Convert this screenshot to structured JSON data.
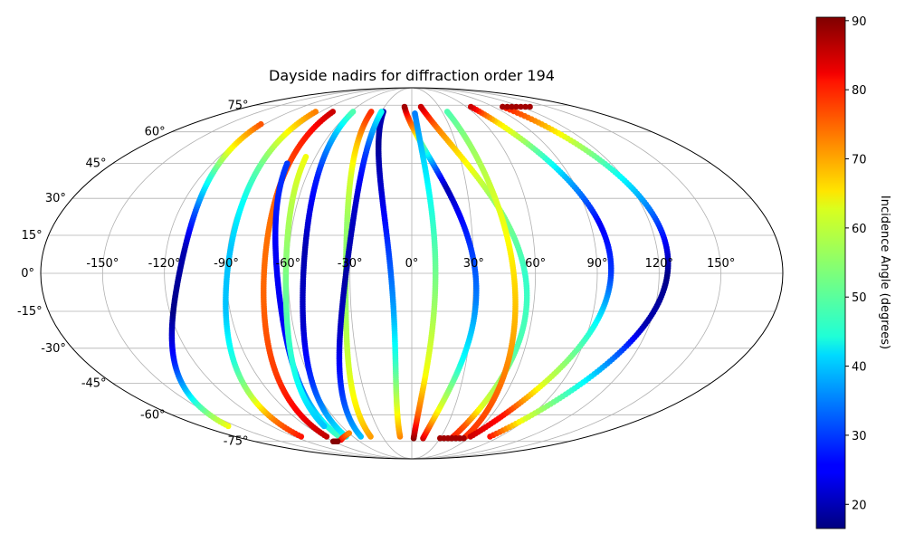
{
  "chart_data": {
    "type": "scatter",
    "projection": "mollweide",
    "title": "Dayside nadirs for diffraction order 194",
    "grid": true,
    "colormap": "jet",
    "lon_tick_labels": [
      "-150°",
      "-120°",
      "-90°",
      "-60°",
      "-30°",
      "0°",
      "30°",
      "60°",
      "90°",
      "120°",
      "150°"
    ],
    "lat_tick_labels": [
      "75°",
      "60°",
      "45°",
      "30°",
      "15°",
      "0°",
      "-15°",
      "-30°",
      "-45°",
      "-60°",
      "-75°"
    ],
    "colorbar": {
      "label": "Incidence Angle (degrees)",
      "range": [
        16.5,
        90.5
      ],
      "tick_labels": [
        "20",
        "30",
        "40",
        "50",
        "60",
        "70",
        "80",
        "90"
      ]
    },
    "series": [
      {
        "lat0": -66,
        "lon0": -157,
        "lat1": 64,
        "lon1": -123,
        "sfac": 1.5,
        "inc": [
          [
            -72,
            68
          ],
          [
            -66,
            62
          ],
          [
            -60,
            55
          ],
          [
            -48,
            40
          ],
          [
            -35,
            28
          ],
          [
            -15,
            17
          ],
          [
            10,
            20
          ],
          [
            25,
            32
          ],
          [
            40,
            48
          ],
          [
            52,
            62
          ],
          [
            60,
            70
          ],
          [
            64,
            75
          ]
        ]
      },
      {
        "lat0": -72,
        "lon0": -113,
        "lat1": 71,
        "lon1": -95,
        "sfac": 0.8,
        "inc": [
          [
            -72,
            80
          ],
          [
            -62,
            72
          ],
          [
            -50,
            57
          ],
          [
            -35,
            47
          ],
          [
            -15,
            40
          ],
          [
            10,
            40
          ],
          [
            30,
            45
          ],
          [
            45,
            52
          ],
          [
            57,
            60
          ],
          [
            65,
            67
          ],
          [
            71,
            72
          ]
        ]
      },
      {
        "lat0": -72,
        "lon0": -87,
        "lat1": 71,
        "lon1": -78,
        "sfac": 0.6,
        "inc": [
          [
            -72,
            86
          ],
          [
            -60,
            82
          ],
          [
            -40,
            77
          ],
          [
            -10,
            74
          ],
          [
            20,
            73
          ],
          [
            45,
            76
          ],
          [
            60,
            80
          ],
          [
            71,
            85
          ]
        ]
      },
      {
        "lat0": -72,
        "lon0": -74,
        "lat1": 45,
        "lon1": -75,
        "sfac": 0.55,
        "inc": [
          [
            -72,
            50
          ],
          [
            -60,
            42
          ],
          [
            -45,
            33
          ],
          [
            -20,
            25
          ],
          [
            10,
            25
          ],
          [
            30,
            28
          ],
          [
            45,
            30
          ]
        ]
      },
      {
        "lat0": -72,
        "lon0": -67,
        "lat1": 71,
        "lon1": -58,
        "sfac": 0.55,
        "inc": [
          [
            -72,
            45
          ],
          [
            -60,
            38
          ],
          [
            -45,
            30
          ],
          [
            -20,
            22
          ],
          [
            10,
            20
          ],
          [
            40,
            28
          ],
          [
            60,
            40
          ],
          [
            71,
            50
          ]
        ]
      },
      {
        "lat0": 48,
        "lon0": -66,
        "lat1": -66,
        "lon1": -75,
        "sfac": 0.5,
        "inc": [
          [
            48,
            62
          ],
          [
            30,
            58
          ],
          [
            10,
            55
          ],
          [
            -20,
            50
          ],
          [
            -45,
            45
          ],
          [
            -66,
            40
          ]
        ]
      },
      {
        "lat0": -72,
        "lon0": -42,
        "lat1": 71,
        "lon1": -40,
        "sfac": 0.5,
        "inc": [
          [
            -72,
            70
          ],
          [
            -60,
            65
          ],
          [
            -40,
            60
          ],
          [
            -10,
            55
          ],
          [
            20,
            55
          ],
          [
            40,
            60
          ],
          [
            55,
            67
          ],
          [
            65,
            75
          ],
          [
            71,
            78
          ]
        ]
      },
      {
        "lat0": -72,
        "lon0": -12,
        "lat1": 71,
        "lon1": -28,
        "sfac": 0.55,
        "inc": [
          [
            -72,
            72
          ],
          [
            -55,
            60
          ],
          [
            -35,
            48
          ],
          [
            -15,
            38
          ],
          [
            10,
            30
          ],
          [
            35,
            22
          ],
          [
            55,
            18
          ],
          [
            65,
            20
          ]
        ]
      },
      {
        "lat0": -72,
        "lon0": -52,
        "lat1": 71,
        "lon1": -30,
        "sfac": 0.5,
        "inc": [
          [
            -72,
            40
          ],
          [
            -50,
            30
          ],
          [
            -25,
            22
          ],
          [
            0,
            19
          ],
          [
            30,
            22
          ],
          [
            50,
            30
          ],
          [
            65,
            40
          ],
          [
            71,
            45
          ]
        ]
      },
      {
        "lat0": -73,
        "lon0": 12,
        "lat1": 74,
        "lon1": -8,
        "sfac": 1.6,
        "inc": [
          [
            -73,
            85
          ],
          [
            -70,
            80
          ],
          [
            -62,
            68
          ],
          [
            -55,
            60
          ],
          [
            -35,
            45
          ],
          [
            -10,
            35
          ],
          [
            10,
            30
          ],
          [
            25,
            25
          ],
          [
            35,
            20
          ],
          [
            45,
            35
          ],
          [
            55,
            55
          ],
          [
            62,
            70
          ],
          [
            70,
            80
          ],
          [
            74,
            88
          ]
        ]
      },
      {
        "lat0": -73,
        "lon0": 2,
        "lat1": 70,
        "lon1": 3,
        "sfac": 0.5,
        "inc": [
          [
            -73,
            90
          ],
          [
            -60,
            75
          ],
          [
            -40,
            62
          ],
          [
            -10,
            55
          ],
          [
            20,
            48
          ],
          [
            45,
            42
          ],
          [
            60,
            38
          ],
          [
            70,
            35
          ]
        ]
      },
      {
        "lat0": -73,
        "lon0": 42,
        "lat1": 74,
        "lon1": 10,
        "sfac": 1.6,
        "inc": [
          [
            -73,
            80
          ],
          [
            -65,
            75
          ],
          [
            -55,
            60
          ],
          [
            -30,
            50
          ],
          [
            0,
            48
          ],
          [
            30,
            55
          ],
          [
            50,
            65
          ],
          [
            62,
            72
          ],
          [
            70,
            80
          ],
          [
            74,
            85
          ]
        ]
      },
      {
        "lat0": -72,
        "lon0": 55,
        "lat1": 71,
        "lon1": 35,
        "sfac": 0.25,
        "inc": [
          [
            -72,
            78
          ],
          [
            -55,
            75
          ],
          [
            -30,
            70
          ],
          [
            0,
            65
          ],
          [
            30,
            60
          ],
          [
            55,
            55
          ],
          [
            71,
            50
          ]
        ]
      },
      {
        "lat0": -72,
        "lon0": 60,
        "lat1": 74,
        "lon1": 65,
        "sfac": 1.9,
        "inc": [
          [
            -72,
            85
          ],
          [
            -60,
            80
          ],
          [
            -45,
            60
          ],
          [
            -20,
            45
          ],
          [
            0,
            30
          ],
          [
            20,
            25
          ],
          [
            40,
            40
          ],
          [
            55,
            55
          ],
          [
            65,
            65
          ],
          [
            70,
            75
          ],
          [
            74,
            85
          ]
        ]
      },
      {
        "lat0": -72,
        "lon0": 80,
        "lat1": 74,
        "lon1": 100,
        "sfac": 1.9,
        "inc": [
          [
            -72,
            80
          ],
          [
            -62,
            60
          ],
          [
            -45,
            45
          ],
          [
            -20,
            20
          ],
          [
            0,
            17
          ],
          [
            20,
            30
          ],
          [
            40,
            45
          ],
          [
            55,
            58
          ],
          [
            65,
            70
          ],
          [
            74,
            80
          ]
        ]
      },
      {
        "lat0": -74,
        "lon0": -78,
        "lat1": -70,
        "lon1": -60,
        "sfac": 0,
        "inc": [
          [
            -74,
            82
          ],
          [
            -70,
            72
          ]
        ]
      },
      {
        "lat0": -75,
        "lon0": -90,
        "lat1": -75,
        "lon1": -85,
        "sfac": 0,
        "inc": [
          [
            -75,
            90
          ],
          [
            -75,
            85
          ]
        ]
      },
      {
        "lat0": 74,
        "lon0": 100,
        "lat1": 74,
        "lon1": 130,
        "sfac": 0,
        "inc": [
          [
            74,
            88
          ],
          [
            74,
            82
          ],
          [
            74,
            78
          ]
        ]
      },
      {
        "lat0": -73,
        "lon0": 30,
        "lat1": -73,
        "lon1": 55,
        "sfac": 0,
        "inc": [
          [
            -73,
            88
          ],
          [
            -73,
            90
          ]
        ]
      }
    ]
  }
}
